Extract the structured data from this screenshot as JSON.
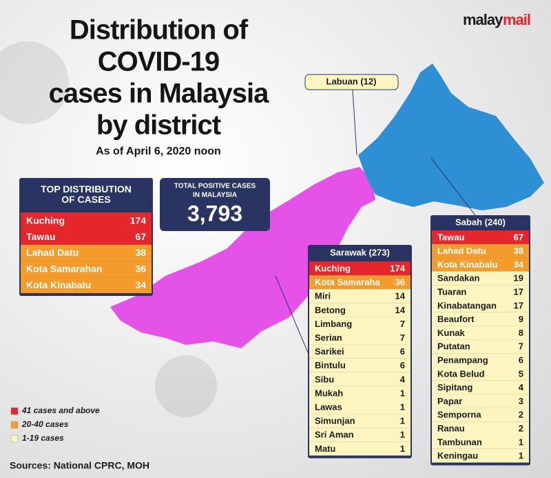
{
  "logo": {
    "first": "malay",
    "second": "mail"
  },
  "title": [
    "Distribution of",
    "COVID-19",
    "cases in Malaysia",
    "by district"
  ],
  "subtitle": "As of April 6, 2020 noon",
  "top_distribution": {
    "title": [
      "TOP DISTRIBUTION",
      "OF CASES"
    ],
    "rows": [
      {
        "district": "Kuching",
        "cases": 174,
        "color": "#e5262a"
      },
      {
        "district": "Tawau",
        "cases": 67,
        "color": "#e5262a"
      },
      {
        "district": "Lahad Datu",
        "cases": 38,
        "color": "#f39c2b"
      },
      {
        "district": "Kota Samarahan",
        "cases": 36,
        "color": "#f39c2b"
      },
      {
        "district": "Kota Kinabalu",
        "cases": 34,
        "color": "#f39c2b"
      }
    ]
  },
  "total": {
    "label": [
      "TOTAL POSITIVE CASES",
      "IN MALAYSIA"
    ],
    "value": "3,793"
  },
  "labuan": "Labuan (12)",
  "sarawak": {
    "title": "Sarawak (273)",
    "rows": [
      {
        "district": "Kuching",
        "cases": 174,
        "color": "#e5262a"
      },
      {
        "district": "Kota Samaraha",
        "cases": 36,
        "color": "#f39c2b"
      },
      {
        "district": "Miri",
        "cases": 14,
        "color": "#fdf5c0"
      },
      {
        "district": "Betong",
        "cases": 14,
        "color": "#fdf5c0"
      },
      {
        "district": "Limbang",
        "cases": 7,
        "color": "#fdf5c0"
      },
      {
        "district": "Serian",
        "cases": 7,
        "color": "#fdf5c0"
      },
      {
        "district": "Sarikei",
        "cases": 6,
        "color": "#fdf5c0"
      },
      {
        "district": "Bintulu",
        "cases": 6,
        "color": "#fdf5c0"
      },
      {
        "district": "Sibu",
        "cases": 4,
        "color": "#fdf5c0"
      },
      {
        "district": "Mukah",
        "cases": 1,
        "color": "#fdf5c0"
      },
      {
        "district": "Lawas",
        "cases": 1,
        "color": "#fdf5c0"
      },
      {
        "district": "Simunjan",
        "cases": 1,
        "color": "#fdf5c0"
      },
      {
        "district": "Sri Aman",
        "cases": 1,
        "color": "#fdf5c0"
      },
      {
        "district": "Matu",
        "cases": 1,
        "color": "#fdf5c0"
      }
    ]
  },
  "sabah": {
    "title": "Sabah (240)",
    "rows": [
      {
        "district": "Tawau",
        "cases": 67,
        "color": "#e5262a"
      },
      {
        "district": "Lahad Datu",
        "cases": 38,
        "color": "#f39c2b"
      },
      {
        "district": "Kota Kinabalu",
        "cases": 34,
        "color": "#f39c2b"
      },
      {
        "district": "Sandakan",
        "cases": 19,
        "color": "#fdf5c0"
      },
      {
        "district": "Tuaran",
        "cases": 17,
        "color": "#fdf5c0"
      },
      {
        "district": "Kinabatangan",
        "cases": 17,
        "color": "#fdf5c0"
      },
      {
        "district": "Beaufort",
        "cases": 9,
        "color": "#fdf5c0"
      },
      {
        "district": "Kunak",
        "cases": 8,
        "color": "#fdf5c0"
      },
      {
        "district": "Putatan",
        "cases": 7,
        "color": "#fdf5c0"
      },
      {
        "district": "Penampang",
        "cases": 6,
        "color": "#fdf5c0"
      },
      {
        "district": "Kota Belud",
        "cases": 5,
        "color": "#fdf5c0"
      },
      {
        "district": "Sipitang",
        "cases": 4,
        "color": "#fdf5c0"
      },
      {
        "district": "Papar",
        "cases": 3,
        "color": "#fdf5c0"
      },
      {
        "district": "Semporna",
        "cases": 2,
        "color": "#fdf5c0"
      },
      {
        "district": "Ranau",
        "cases": 2,
        "color": "#fdf5c0"
      },
      {
        "district": "Tambunan",
        "cases": 1,
        "color": "#fdf5c0"
      },
      {
        "district": "Keningau",
        "cases": 1,
        "color": "#fdf5c0"
      }
    ]
  },
  "legend": [
    {
      "label": "41 cases and above",
      "color": "#e5262a"
    },
    {
      "label": "20-40 cases",
      "color": "#f39c2b"
    },
    {
      "label": "1-19 cases",
      "color": "#fdf5c0"
    }
  ],
  "source": "Sources: National CPRC, MOH"
}
